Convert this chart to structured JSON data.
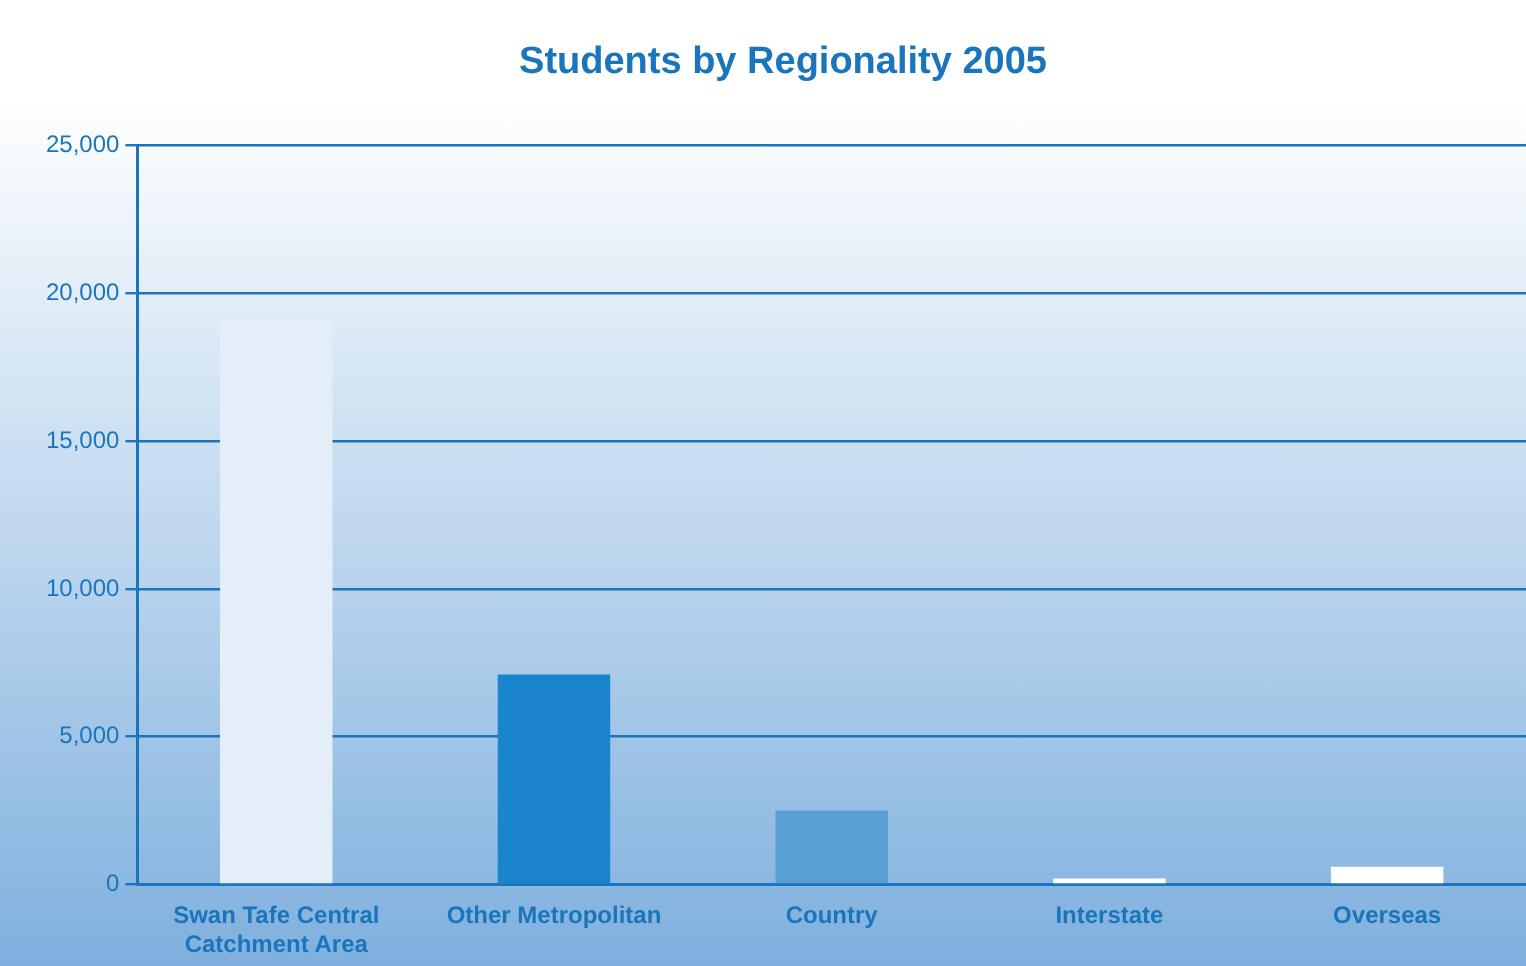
{
  "chart_data": {
    "type": "bar",
    "title": "Students by Regionality 2005",
    "categories": [
      "Swan Tafe Central Catchment Area",
      "Other Metropolitan",
      "Country",
      "Interstate",
      "Overseas"
    ],
    "values": [
      19100,
      7100,
      2500,
      200,
      600
    ],
    "colors": [
      "#e4eef8",
      "#1a85cc",
      "#5a9fd4",
      "#ffffff",
      "#ffffff"
    ],
    "ylim": [
      0,
      25000
    ],
    "yticks": [
      {
        "value": 0,
        "label": "0"
      },
      {
        "value": 5000,
        "label": "5,000"
      },
      {
        "value": 10000,
        "label": "10,000"
      },
      {
        "value": 15000,
        "label": "15,000"
      },
      {
        "value": 20000,
        "label": "20,000"
      },
      {
        "value": 25000,
        "label": "25,000"
      }
    ],
    "grid": "y",
    "legend": false
  }
}
